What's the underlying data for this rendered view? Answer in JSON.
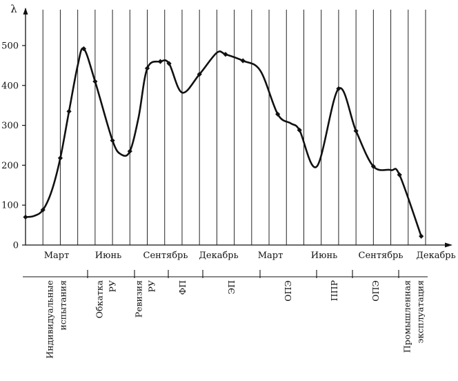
{
  "chart_data": {
    "type": "line",
    "title": "",
    "ylabel": "λ",
    "xlabel": "",
    "ylim": [
      0,
      600
    ],
    "yticks": [
      "0",
      "100",
      "200",
      "300",
      "400",
      "500"
    ],
    "grid": "vertical",
    "x_months": [
      "Март",
      "Июнь",
      "Сентябрь",
      "Декабрь",
      "Март",
      "Июнь",
      "Сентябрь",
      "Декабрь"
    ],
    "series": [
      {
        "points": [
          {
            "x": 0,
            "y": 70
          },
          {
            "x": 1,
            "y": 73
          },
          {
            "x": 2,
            "y": 88
          },
          {
            "x": 3,
            "y": 135
          },
          {
            "x": 4,
            "y": 218
          },
          {
            "x": 5,
            "y": 335
          },
          {
            "x": 6,
            "y": 450
          },
          {
            "x": 6.7,
            "y": 492
          },
          {
            "x": 8,
            "y": 410
          },
          {
            "x": 10,
            "y": 262
          },
          {
            "x": 11,
            "y": 227
          },
          {
            "x": 12,
            "y": 235
          },
          {
            "x": 13,
            "y": 320
          },
          {
            "x": 14,
            "y": 443
          },
          {
            "x": 15.5,
            "y": 460
          },
          {
            "x": 16.5,
            "y": 455
          },
          {
            "x": 18,
            "y": 382
          },
          {
            "x": 20,
            "y": 428
          },
          {
            "x": 22,
            "y": 482
          },
          {
            "x": 23,
            "y": 478
          },
          {
            "x": 25,
            "y": 462
          },
          {
            "x": 27,
            "y": 437
          },
          {
            "x": 29,
            "y": 328
          },
          {
            "x": 30.5,
            "y": 305
          },
          {
            "x": 31.5,
            "y": 288
          },
          {
            "x": 33.5,
            "y": 197
          },
          {
            "x": 36,
            "y": 392
          },
          {
            "x": 38,
            "y": 286
          },
          {
            "x": 40,
            "y": 197
          },
          {
            "x": 42,
            "y": 188
          },
          {
            "x": 43,
            "y": 176
          },
          {
            "x": 45.5,
            "y": 22
          }
        ],
        "markers": [
          0,
          2,
          4,
          5,
          7,
          8,
          9,
          11,
          13,
          14,
          15,
          17,
          19,
          20,
          22,
          24,
          26,
          27,
          28,
          30,
          31
        ]
      }
    ],
    "phases": [
      [
        "Индивидуальные",
        "испытания"
      ],
      [
        "Обкатка",
        "РУ"
      ],
      [
        "Ревизия",
        "РУ"
      ],
      [
        "ФП"
      ],
      [
        "ЭП"
      ],
      [
        "ОПЭ"
      ],
      [
        "ППР"
      ],
      [
        "ОПЭ"
      ],
      [
        "Промышленная",
        "эксплуатация"
      ]
    ]
  }
}
